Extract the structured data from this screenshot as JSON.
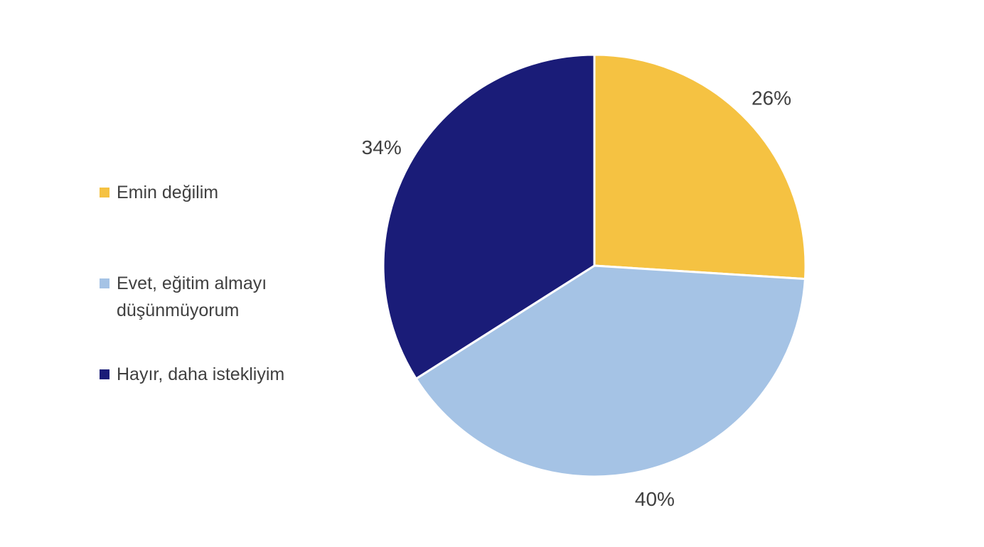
{
  "chart_data": {
    "type": "pie",
    "categories": [
      "Emin değilim",
      "Evet, eğitim almayı düşünmüyorum",
      "Hayır, daha istekliyim"
    ],
    "values": [
      26,
      40,
      34
    ],
    "value_labels": [
      "26%",
      "40%",
      "34%"
    ],
    "colors": [
      "#f5c242",
      "#a5c3e5",
      "#1a1c78"
    ]
  }
}
